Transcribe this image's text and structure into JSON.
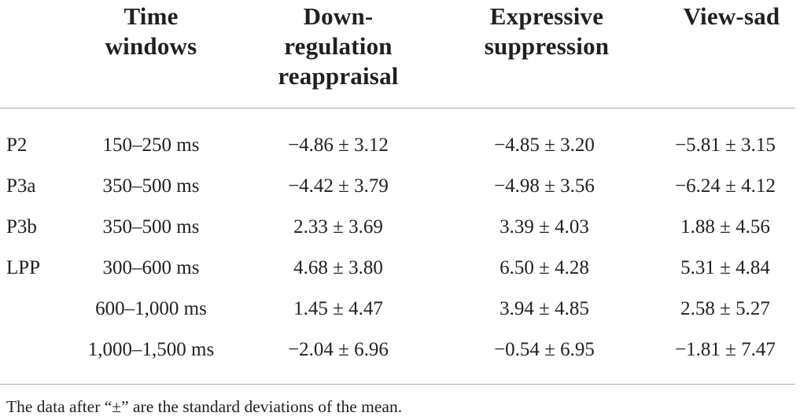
{
  "table": {
    "headers": {
      "time": [
        "Time",
        "windows"
      ],
      "down": [
        "Down-",
        "regulation",
        "reappraisal"
      ],
      "expr": [
        "Expressive",
        "suppression"
      ],
      "view": [
        "View-sad"
      ]
    },
    "rows": [
      {
        "component": "P2",
        "window": "150–250 ms",
        "down": "−4.86 ± 3.12",
        "expr": "−4.85 ± 3.20",
        "view": "−5.81 ± 3.15"
      },
      {
        "component": "P3a",
        "window": "350–500 ms",
        "down": "−4.42 ± 3.79",
        "expr": "−4.98 ± 3.56",
        "view": "−6.24 ± 4.12"
      },
      {
        "component": "P3b",
        "window": "350–500 ms",
        "down": "2.33 ± 3.69",
        "expr": "3.39 ± 4.03",
        "view": "1.88 ± 4.56"
      },
      {
        "component": "LPP",
        "window": "300–600 ms",
        "down": "4.68 ± 3.80",
        "expr": "6.50 ± 4.28",
        "view": "5.31 ± 4.84"
      },
      {
        "component": "",
        "window": "600–1,000 ms",
        "down": "1.45 ± 4.47",
        "expr": "3.94 ± 4.85",
        "view": "2.58 ± 5.27"
      },
      {
        "component": "",
        "window": "1,000–1,500 ms",
        "down": "−2.04 ± 6.96",
        "expr": "−0.54 ± 6.95",
        "view": "−1.81 ± 7.47"
      }
    ]
  },
  "footnote": "The data after “±” are the standard deviations of the mean.",
  "colors": {
    "text": "#231f20",
    "rule": "#b5b3b4",
    "background": "#ffffff"
  }
}
